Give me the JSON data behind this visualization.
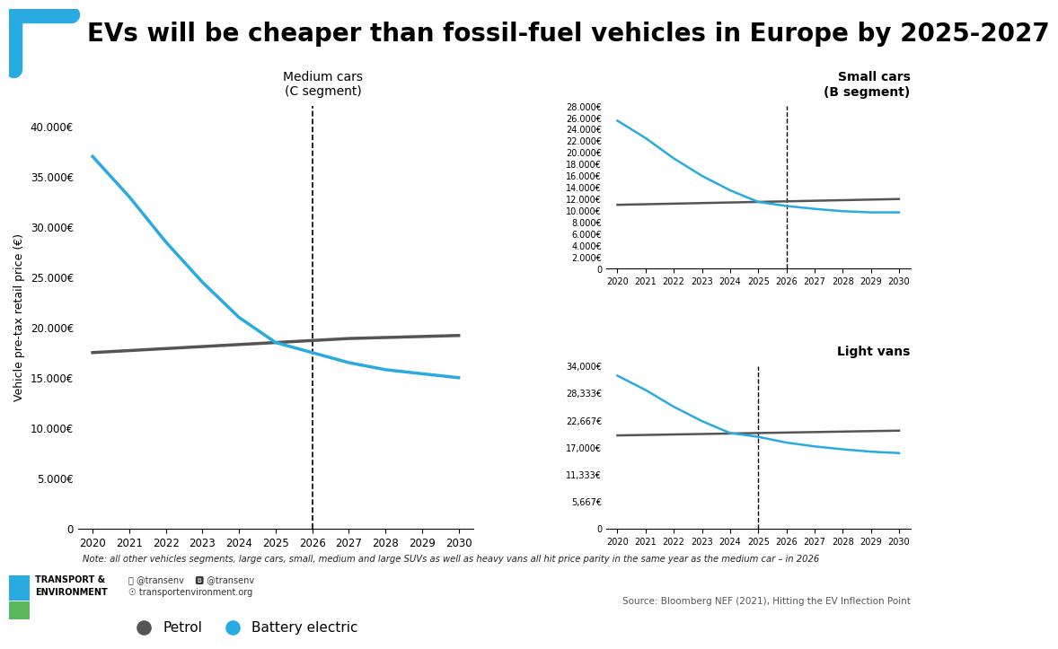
{
  "title": "EVs will be cheaper than fossil-fuel vehicles in Europe by 2025-2027",
  "background_color": "#ffffff",
  "petrol_color": "#555555",
  "ev_color": "#29abe2",
  "note": "Note: all other vehicles segments, large cars, small, medium and large SUVs as well as heavy vans all hit price parity in the same year as the medium car – in 2026",
  "source": "Source: Bloomberg NEF (2021), Hitting the EV Inflection Point",
  "ylabel": "Vehicle pre-tax retail price (€)",
  "medium_title": "Medium cars\n(C segment)",
  "small_title": "Small cars\n(B segment)",
  "van_title": "Light vans",
  "years": [
    2020,
    2021,
    2022,
    2023,
    2024,
    2025,
    2026,
    2027,
    2028,
    2029,
    2030
  ],
  "medium_petrol": [
    17500,
    17700,
    17900,
    18100,
    18300,
    18500,
    18700,
    18900,
    19000,
    19100,
    19200
  ],
  "medium_ev": [
    37000,
    33000,
    28500,
    24500,
    21000,
    18500,
    17500,
    16500,
    15800,
    15400,
    15000
  ],
  "medium_crossover": 2026,
  "medium_ylim": [
    0,
    42000
  ],
  "medium_yticks": [
    0,
    5000,
    10000,
    15000,
    20000,
    25000,
    30000,
    35000,
    40000
  ],
  "small_petrol": [
    11000,
    11100,
    11200,
    11300,
    11400,
    11500,
    11600,
    11700,
    11800,
    11900,
    12000
  ],
  "small_ev": [
    25500,
    22500,
    19000,
    16000,
    13500,
    11500,
    10800,
    10300,
    9900,
    9700,
    9700
  ],
  "small_crossover": 2026,
  "small_ylim": [
    0,
    28000
  ],
  "small_yticks": [
    0,
    2000,
    4000,
    6000,
    8000,
    10000,
    12000,
    14000,
    16000,
    18000,
    20000,
    22000,
    24000,
    26000,
    28000
  ],
  "van_petrol": [
    19500,
    19600,
    19700,
    19800,
    19900,
    20000,
    20100,
    20200,
    20300,
    20400,
    20500
  ],
  "van_ev": [
    32000,
    29000,
    25500,
    22500,
    20000,
    19200,
    18000,
    17200,
    16600,
    16100,
    15800
  ],
  "van_crossover": 2025,
  "van_ylim": [
    0,
    34000
  ],
  "van_yticks": [
    0,
    5667,
    11333,
    17000,
    22667,
    28333,
    34000
  ],
  "van_yticklabels": [
    "0",
    "5,667€",
    "11,333€",
    "17,000€",
    "22,667€",
    "28,333€",
    "34,000€"
  ],
  "bracket_color": "#29abe2"
}
